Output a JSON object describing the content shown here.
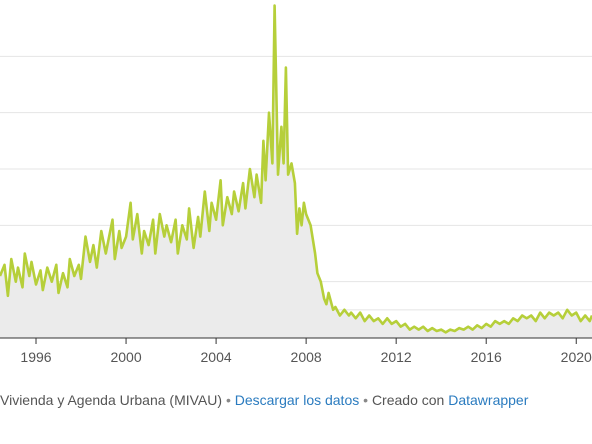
{
  "chart_data": {
    "type": "area",
    "title": "",
    "xlabel": "",
    "ylabel": "",
    "x_ticks": [
      "1996",
      "2000",
      "2004",
      "2008",
      "2012",
      "2016",
      "2020"
    ],
    "xlim": [
      1994.4,
      2020.7
    ],
    "ylim": [
      0,
      120
    ],
    "grid": true,
    "line_color": "#b6cf3a",
    "area_color": "#ebebeb",
    "series": [
      {
        "values": [
          [
            1994.4,
            22
          ],
          [
            1994.6,
            26
          ],
          [
            1994.75,
            15
          ],
          [
            1994.9,
            28
          ],
          [
            1995.1,
            20
          ],
          [
            1995.2,
            25
          ],
          [
            1995.4,
            18
          ],
          [
            1995.5,
            30
          ],
          [
            1995.7,
            22
          ],
          [
            1995.8,
            27
          ],
          [
            1996.0,
            19
          ],
          [
            1996.2,
            24
          ],
          [
            1996.3,
            17
          ],
          [
            1996.5,
            25
          ],
          [
            1996.7,
            20
          ],
          [
            1996.9,
            26
          ],
          [
            1997.0,
            16
          ],
          [
            1997.2,
            23
          ],
          [
            1997.4,
            18
          ],
          [
            1997.5,
            28
          ],
          [
            1997.7,
            22
          ],
          [
            1997.9,
            26
          ],
          [
            1998.0,
            21
          ],
          [
            1998.2,
            36
          ],
          [
            1998.4,
            27
          ],
          [
            1998.55,
            33
          ],
          [
            1998.7,
            25
          ],
          [
            1998.9,
            38
          ],
          [
            1999.1,
            30
          ],
          [
            1999.2,
            34
          ],
          [
            1999.4,
            42
          ],
          [
            1999.5,
            28
          ],
          [
            1999.7,
            38
          ],
          [
            1999.8,
            32
          ],
          [
            2000.0,
            36
          ],
          [
            2000.2,
            48
          ],
          [
            2000.3,
            35
          ],
          [
            2000.5,
            44
          ],
          [
            2000.7,
            30
          ],
          [
            2000.8,
            38
          ],
          [
            2001.0,
            33
          ],
          [
            2001.2,
            42
          ],
          [
            2001.3,
            30
          ],
          [
            2001.5,
            44
          ],
          [
            2001.7,
            36
          ],
          [
            2001.8,
            40
          ],
          [
            2002.0,
            34
          ],
          [
            2002.2,
            42
          ],
          [
            2002.3,
            30
          ],
          [
            2002.5,
            40
          ],
          [
            2002.7,
            35
          ],
          [
            2002.8,
            46
          ],
          [
            2003.0,
            32
          ],
          [
            2003.2,
            43
          ],
          [
            2003.3,
            36
          ],
          [
            2003.5,
            52
          ],
          [
            2003.7,
            38
          ],
          [
            2003.8,
            48
          ],
          [
            2004.0,
            42
          ],
          [
            2004.2,
            56
          ],
          [
            2004.3,
            40
          ],
          [
            2004.5,
            50
          ],
          [
            2004.7,
            44
          ],
          [
            2004.8,
            52
          ],
          [
            2005.0,
            45
          ],
          [
            2005.2,
            55
          ],
          [
            2005.3,
            46
          ],
          [
            2005.5,
            60
          ],
          [
            2005.7,
            50
          ],
          [
            2005.8,
            58
          ],
          [
            2006.0,
            48
          ],
          [
            2006.1,
            70
          ],
          [
            2006.2,
            56
          ],
          [
            2006.35,
            80
          ],
          [
            2006.5,
            62
          ],
          [
            2006.6,
            118
          ],
          [
            2006.75,
            58
          ],
          [
            2006.9,
            75
          ],
          [
            2007.0,
            62
          ],
          [
            2007.1,
            96
          ],
          [
            2007.2,
            58
          ],
          [
            2007.35,
            62
          ],
          [
            2007.5,
            55
          ],
          [
            2007.6,
            37
          ],
          [
            2007.7,
            46
          ],
          [
            2007.8,
            40
          ],
          [
            2007.9,
            48
          ],
          [
            2008.0,
            44
          ],
          [
            2008.2,
            40
          ],
          [
            2008.4,
            30
          ],
          [
            2008.5,
            23
          ],
          [
            2008.65,
            20
          ],
          [
            2008.8,
            14
          ],
          [
            2008.9,
            12
          ],
          [
            2009.0,
            16
          ],
          [
            2009.2,
            10
          ],
          [
            2009.3,
            11
          ],
          [
            2009.5,
            8
          ],
          [
            2009.7,
            10
          ],
          [
            2009.9,
            8
          ],
          [
            2010.0,
            9
          ],
          [
            2010.2,
            7
          ],
          [
            2010.4,
            9
          ],
          [
            2010.6,
            6
          ],
          [
            2010.8,
            8
          ],
          [
            2011.0,
            6
          ],
          [
            2011.2,
            7
          ],
          [
            2011.4,
            5
          ],
          [
            2011.6,
            7
          ],
          [
            2011.8,
            5
          ],
          [
            2012.0,
            6
          ],
          [
            2012.2,
            4
          ],
          [
            2012.4,
            5
          ],
          [
            2012.6,
            3
          ],
          [
            2012.8,
            4
          ],
          [
            2013.0,
            3
          ],
          [
            2013.2,
            4
          ],
          [
            2013.4,
            2.5
          ],
          [
            2013.6,
            3.5
          ],
          [
            2013.8,
            2.5
          ],
          [
            2014.0,
            3
          ],
          [
            2014.2,
            2
          ],
          [
            2014.4,
            3
          ],
          [
            2014.6,
            2.5
          ],
          [
            2014.8,
            3.5
          ],
          [
            2015.0,
            3
          ],
          [
            2015.2,
            4
          ],
          [
            2015.4,
            3
          ],
          [
            2015.6,
            4.5
          ],
          [
            2015.8,
            3.5
          ],
          [
            2016.0,
            5
          ],
          [
            2016.2,
            4
          ],
          [
            2016.4,
            6
          ],
          [
            2016.6,
            5
          ],
          [
            2016.8,
            6
          ],
          [
            2017.0,
            5
          ],
          [
            2017.2,
            7
          ],
          [
            2017.4,
            6
          ],
          [
            2017.6,
            8
          ],
          [
            2017.8,
            7
          ],
          [
            2018.0,
            8
          ],
          [
            2018.2,
            6
          ],
          [
            2018.4,
            9
          ],
          [
            2018.6,
            7
          ],
          [
            2018.8,
            9
          ],
          [
            2019.0,
            8
          ],
          [
            2019.2,
            9
          ],
          [
            2019.4,
            7
          ],
          [
            2019.6,
            10
          ],
          [
            2019.8,
            8
          ],
          [
            2020.0,
            9
          ],
          [
            2020.2,
            6
          ],
          [
            2020.4,
            8
          ],
          [
            2020.6,
            6
          ],
          [
            2020.7,
            8
          ]
        ]
      }
    ]
  },
  "footer": {
    "source_text": "Vivienda y Agenda Urbana (MIVAU)",
    "separator": "•",
    "download_link": "Descargar los datos",
    "created_with": "Creado con",
    "tool_link": "Datawrapper"
  }
}
